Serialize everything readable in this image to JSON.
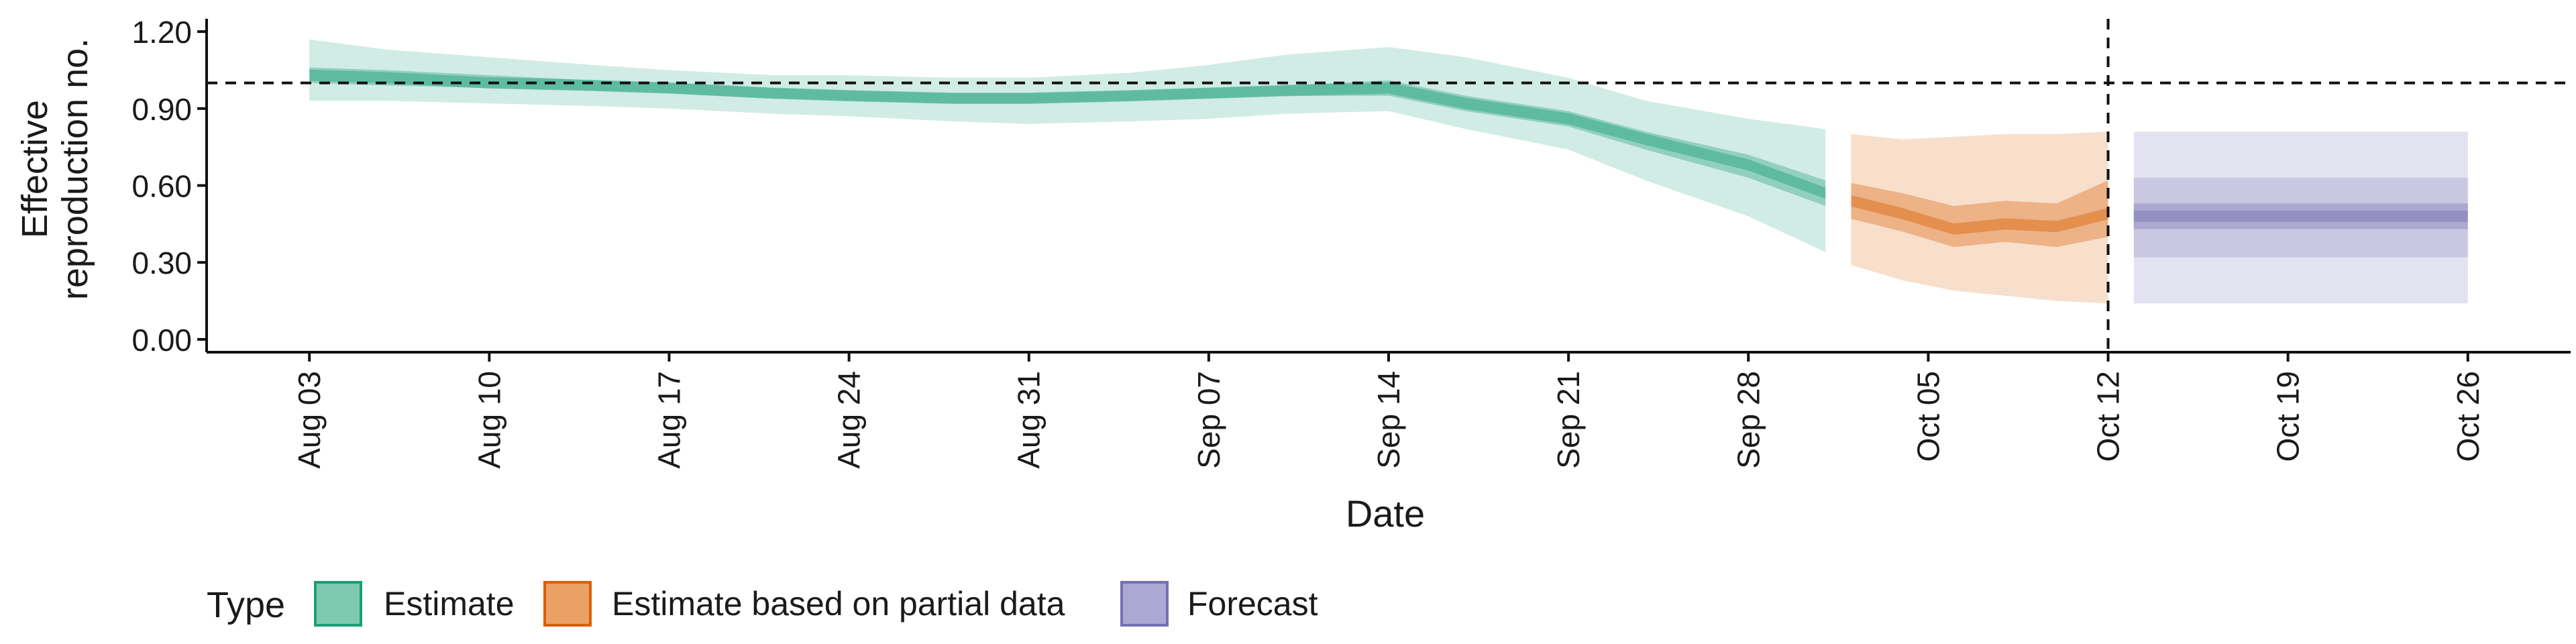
{
  "chart_data": {
    "type": "area",
    "xlabel": "Date",
    "ylabel_lines": [
      "Effective",
      "reproduction no."
    ],
    "ylim": [
      -0.05,
      1.25
    ],
    "yticks": [
      0.0,
      0.3,
      0.6,
      0.9,
      1.2
    ],
    "ytick_labels": [
      "0.00",
      "0.30",
      "0.60",
      "0.90",
      "1.20"
    ],
    "xlim": [
      "2020-07-30",
      "2020-10-30"
    ],
    "xticks": [
      "2020-08-03",
      "2020-08-10",
      "2020-08-17",
      "2020-08-24",
      "2020-08-31",
      "2020-09-07",
      "2020-09-14",
      "2020-09-21",
      "2020-09-28",
      "2020-10-05",
      "2020-10-12",
      "2020-10-19",
      "2020-10-26"
    ],
    "xtick_labels": [
      "Aug 03",
      "Aug 10",
      "Aug 17",
      "Aug 24",
      "Aug 31",
      "Sep 07",
      "Sep 14",
      "Sep 21",
      "Sep 28",
      "Oct 05",
      "Oct 12",
      "Oct 19",
      "Oct 26"
    ],
    "reference_hline": 1.0,
    "reference_vline": "2020-10-12",
    "legend": {
      "title": "Type",
      "position": "bottom-left",
      "entries": [
        "Estimate",
        "Estimate based on partial data",
        "Forecast"
      ]
    },
    "colors": {
      "Estimate": "#1b9e77",
      "Estimate based on partial data": "#d95f02",
      "Forecast": "#7570b3"
    },
    "series": [
      {
        "name": "Estimate",
        "x": [
          "2020-08-03",
          "2020-08-06",
          "2020-08-10",
          "2020-08-14",
          "2020-08-17",
          "2020-08-21",
          "2020-08-24",
          "2020-08-28",
          "2020-08-31",
          "2020-09-04",
          "2020-09-07",
          "2020-09-10",
          "2020-09-14",
          "2020-09-17",
          "2020-09-21",
          "2020-09-24",
          "2020-09-28",
          "2020-10-01"
        ],
        "median": [
          1.03,
          1.02,
          1.0,
          0.99,
          0.98,
          0.96,
          0.95,
          0.94,
          0.94,
          0.95,
          0.96,
          0.97,
          0.98,
          0.92,
          0.86,
          0.78,
          0.68,
          0.57
        ],
        "lower_50": [
          1.0,
          0.99,
          0.98,
          0.97,
          0.96,
          0.94,
          0.93,
          0.92,
          0.92,
          0.93,
          0.94,
          0.95,
          0.95,
          0.89,
          0.83,
          0.74,
          0.63,
          0.52
        ],
        "upper_50": [
          1.06,
          1.05,
          1.03,
          1.01,
          1.0,
          0.98,
          0.97,
          0.96,
          0.96,
          0.97,
          0.98,
          0.99,
          1.01,
          0.95,
          0.89,
          0.81,
          0.72,
          0.62
        ],
        "lower_90": [
          0.93,
          0.93,
          0.92,
          0.91,
          0.9,
          0.88,
          0.87,
          0.85,
          0.84,
          0.85,
          0.86,
          0.88,
          0.89,
          0.82,
          0.74,
          0.62,
          0.48,
          0.34
        ],
        "upper_90": [
          1.17,
          1.13,
          1.1,
          1.07,
          1.05,
          1.03,
          1.03,
          1.02,
          1.02,
          1.04,
          1.07,
          1.11,
          1.14,
          1.1,
          1.02,
          0.93,
          0.86,
          0.82
        ]
      },
      {
        "name": "Estimate based on partial data",
        "x": [
          "2020-10-02",
          "2020-10-04",
          "2020-10-06",
          "2020-10-08",
          "2020-10-10",
          "2020-10-12"
        ],
        "median": [
          0.54,
          0.49,
          0.43,
          0.45,
          0.44,
          0.49
        ],
        "lower_50": [
          0.47,
          0.42,
          0.36,
          0.38,
          0.36,
          0.4
        ],
        "upper_50": [
          0.61,
          0.57,
          0.52,
          0.54,
          0.53,
          0.62
        ],
        "lower_90": [
          0.29,
          0.23,
          0.19,
          0.17,
          0.15,
          0.14
        ],
        "upper_90": [
          0.8,
          0.78,
          0.79,
          0.8,
          0.8,
          0.81
        ]
      },
      {
        "name": "Forecast",
        "x": [
          "2020-10-13",
          "2020-10-26"
        ],
        "median": [
          0.48,
          0.48
        ],
        "lower_50": [
          0.43,
          0.43
        ],
        "upper_50": [
          0.53,
          0.53
        ],
        "lower_90": [
          0.14,
          0.14
        ],
        "upper_90": [
          0.81,
          0.81
        ],
        "lower_75": [
          0.32,
          0.32
        ],
        "upper_75": [
          0.63,
          0.63
        ]
      }
    ]
  }
}
